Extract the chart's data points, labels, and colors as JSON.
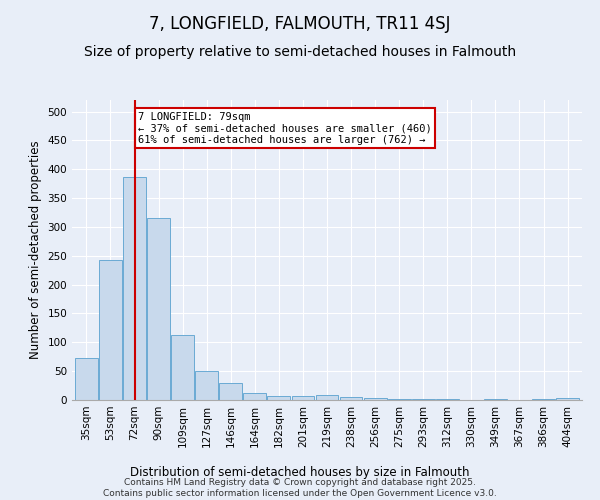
{
  "title": "7, LONGFIELD, FALMOUTH, TR11 4SJ",
  "subtitle": "Size of property relative to semi-detached houses in Falmouth",
  "xlabel": "Distribution of semi-detached houses by size in Falmouth",
  "ylabel": "Number of semi-detached properties",
  "categories": [
    "35sqm",
    "53sqm",
    "72sqm",
    "90sqm",
    "109sqm",
    "127sqm",
    "146sqm",
    "164sqm",
    "182sqm",
    "201sqm",
    "219sqm",
    "238sqm",
    "256sqm",
    "275sqm",
    "293sqm",
    "312sqm",
    "330sqm",
    "349sqm",
    "367sqm",
    "386sqm",
    "404sqm"
  ],
  "values": [
    72,
    242,
    387,
    315,
    112,
    50,
    29,
    13,
    7,
    7,
    8,
    6,
    4,
    1,
    2,
    1,
    0,
    1,
    0,
    1,
    3
  ],
  "bar_color": "#c8d9ec",
  "bar_edge_color": "#6aaad4",
  "vline_x": 2,
  "vline_color": "#cc0000",
  "annotation_text": "7 LONGFIELD: 79sqm\n← 37% of semi-detached houses are smaller (460)\n61% of semi-detached houses are larger (762) →",
  "annotation_box_color": "#ffffff",
  "annotation_box_edge": "#cc0000",
  "footer": "Contains HM Land Registry data © Crown copyright and database right 2025.\nContains public sector information licensed under the Open Government Licence v3.0.",
  "background_color": "#e8eef8",
  "ylim": [
    0,
    520
  ],
  "yticks": [
    0,
    50,
    100,
    150,
    200,
    250,
    300,
    350,
    400,
    450,
    500
  ],
  "title_fontsize": 12,
  "subtitle_fontsize": 10,
  "label_fontsize": 8.5,
  "tick_fontsize": 7.5,
  "footer_fontsize": 6.5,
  "ann_fontsize": 7.5
}
